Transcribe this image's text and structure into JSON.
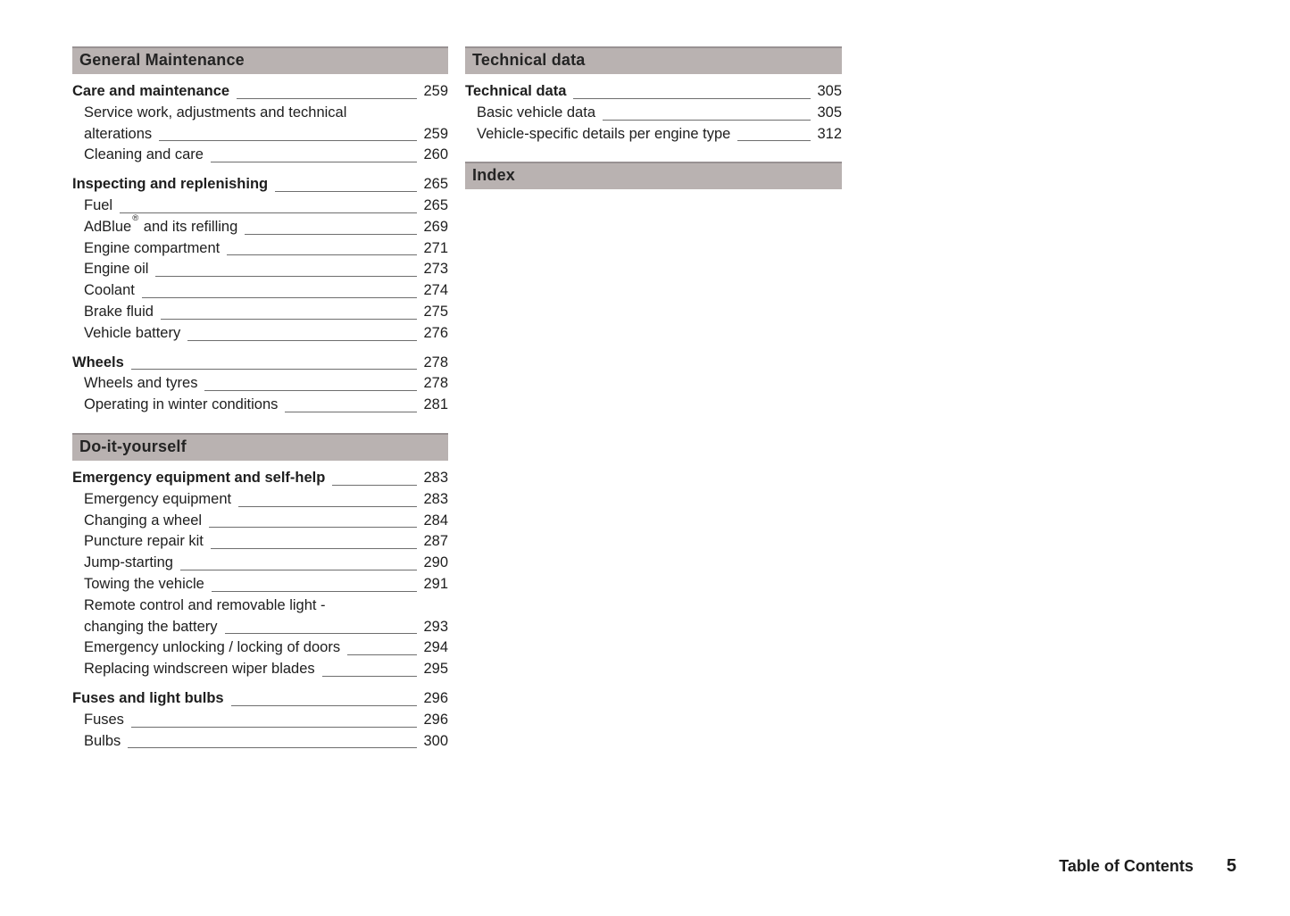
{
  "document": {
    "footer": {
      "label": "Table of Contents",
      "page_number": "5"
    }
  },
  "colors": {
    "section_bar_background": "#b9b2b1",
    "section_bar_top_border": "#989192",
    "text": "#1e1e1e",
    "leader_line": "#6e6e6e",
    "page_background": "#ffffff"
  },
  "columns": [
    {
      "sections": [
        {
          "title": "General Maintenance",
          "groups": [
            {
              "entries": [
                {
                  "bold": true,
                  "lines": [
                    "Care and maintenance"
                  ],
                  "page": "259"
                },
                {
                  "bold": false,
                  "lines": [
                    "Service work, adjustments and technical",
                    "alterations"
                  ],
                  "page": "259"
                },
                {
                  "bold": false,
                  "lines": [
                    "Cleaning and care"
                  ],
                  "page": "260"
                }
              ]
            },
            {
              "entries": [
                {
                  "bold": true,
                  "lines": [
                    "Inspecting and replenishing"
                  ],
                  "page": "265"
                },
                {
                  "bold": false,
                  "lines": [
                    "Fuel"
                  ],
                  "page": "265"
                },
                {
                  "bold": false,
                  "lines": [
                    "AdBlue® and its refilling"
                  ],
                  "page": "269"
                },
                {
                  "bold": false,
                  "lines": [
                    "Engine compartment"
                  ],
                  "page": "271"
                },
                {
                  "bold": false,
                  "lines": [
                    "Engine oil"
                  ],
                  "page": "273"
                },
                {
                  "bold": false,
                  "lines": [
                    "Coolant"
                  ],
                  "page": "274"
                },
                {
                  "bold": false,
                  "lines": [
                    "Brake fluid"
                  ],
                  "page": "275"
                },
                {
                  "bold": false,
                  "lines": [
                    "Vehicle battery"
                  ],
                  "page": "276"
                }
              ]
            },
            {
              "entries": [
                {
                  "bold": true,
                  "lines": [
                    "Wheels"
                  ],
                  "page": "278"
                },
                {
                  "bold": false,
                  "lines": [
                    "Wheels and tyres"
                  ],
                  "page": "278"
                },
                {
                  "bold": false,
                  "lines": [
                    "Operating in winter conditions"
                  ],
                  "page": "281"
                }
              ]
            }
          ]
        },
        {
          "title": "Do-it-yourself",
          "groups": [
            {
              "entries": [
                {
                  "bold": true,
                  "lines": [
                    "Emergency equipment and self-help"
                  ],
                  "page": "283"
                },
                {
                  "bold": false,
                  "lines": [
                    "Emergency equipment"
                  ],
                  "page": "283"
                },
                {
                  "bold": false,
                  "lines": [
                    "Changing a wheel"
                  ],
                  "page": "284"
                },
                {
                  "bold": false,
                  "lines": [
                    "Puncture repair kit"
                  ],
                  "page": "287"
                },
                {
                  "bold": false,
                  "lines": [
                    "Jump-starting"
                  ],
                  "page": "290"
                },
                {
                  "bold": false,
                  "lines": [
                    "Towing the vehicle"
                  ],
                  "page": "291"
                },
                {
                  "bold": false,
                  "lines": [
                    "Remote control and removable light -",
                    "changing the battery"
                  ],
                  "page": "293"
                },
                {
                  "bold": false,
                  "lines": [
                    "Emergency unlocking / locking of doors"
                  ],
                  "page": "294"
                },
                {
                  "bold": false,
                  "lines": [
                    "Replacing windscreen wiper blades"
                  ],
                  "page": "295"
                }
              ]
            },
            {
              "entries": [
                {
                  "bold": true,
                  "lines": [
                    "Fuses and light bulbs"
                  ],
                  "page": "296"
                },
                {
                  "bold": false,
                  "lines": [
                    "Fuses"
                  ],
                  "page": "296"
                },
                {
                  "bold": false,
                  "lines": [
                    "Bulbs"
                  ],
                  "page": "300"
                }
              ]
            }
          ]
        }
      ]
    },
    {
      "sections": [
        {
          "title": "Technical data",
          "groups": [
            {
              "entries": [
                {
                  "bold": true,
                  "lines": [
                    "Technical data"
                  ],
                  "page": "305"
                },
                {
                  "bold": false,
                  "lines": [
                    "Basic vehicle data"
                  ],
                  "page": "305"
                },
                {
                  "bold": false,
                  "lines": [
                    "Vehicle-specific details per engine type"
                  ],
                  "page": "312"
                }
              ]
            }
          ]
        },
        {
          "title": "Index",
          "groups": []
        }
      ]
    }
  ]
}
